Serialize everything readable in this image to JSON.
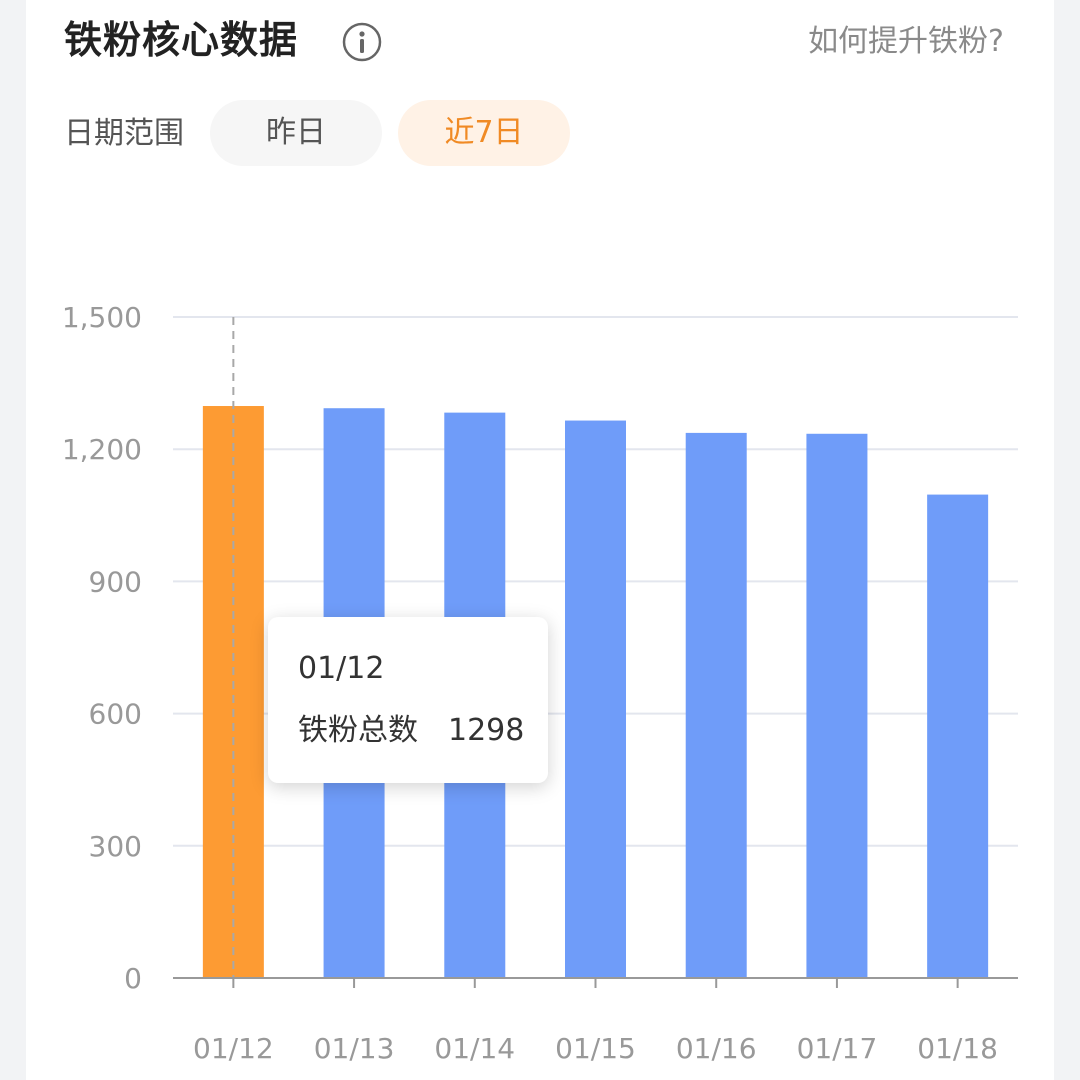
{
  "header": {
    "title": "铁粉核心数据",
    "help_link": "如何提升铁粉?"
  },
  "filter": {
    "label": "日期范围",
    "options": [
      "昨日",
      "近7日"
    ],
    "selected": "近7日"
  },
  "tooltip": {
    "date": "01/12",
    "label": "铁粉总数",
    "value": "1298"
  },
  "colors": {
    "bar": "#6f9cf9",
    "bar_highlight": "#fd9b33",
    "accent": "#f08a24"
  },
  "chart_data": {
    "type": "bar",
    "categories": [
      "01/12",
      "01/13",
      "01/14",
      "01/15",
      "01/16",
      "01/17",
      "01/18"
    ],
    "series": [
      {
        "values": [
          1298,
          1293,
          1283,
          1265,
          1237,
          1235,
          1097
        ]
      }
    ],
    "y_ticks": [
      "0",
      "300",
      "600",
      "900",
      "1,200",
      "1,500"
    ],
    "ylim": [
      0,
      1500
    ],
    "highlighted_index": 0,
    "grid": true,
    "legend": "none"
  }
}
